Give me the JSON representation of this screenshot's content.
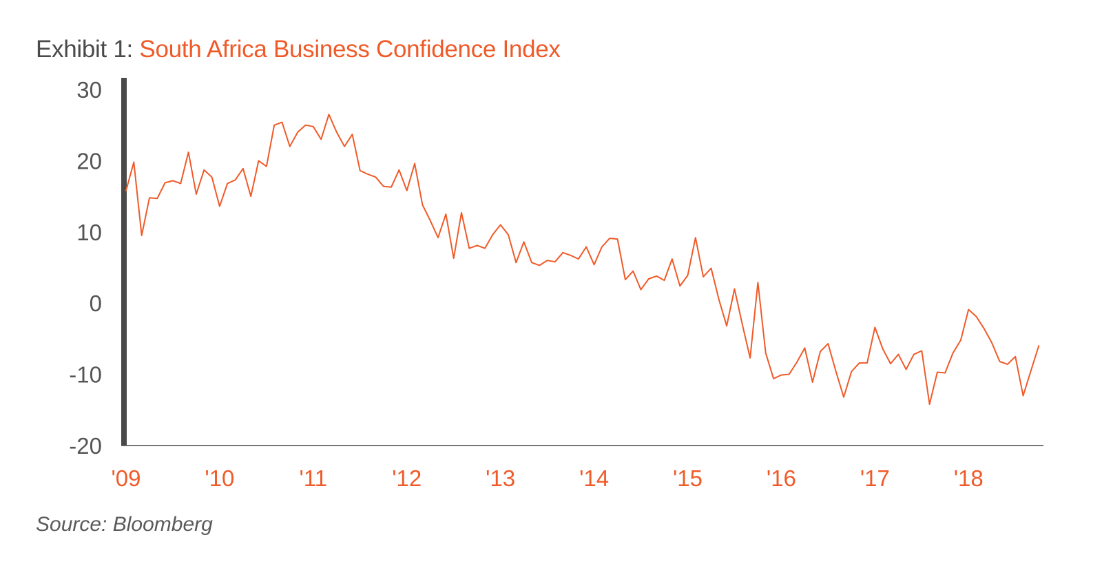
{
  "title": {
    "prefix": "Exhibit 1:",
    "main": "South Africa Business Confidence Index"
  },
  "source": "Source: Bloomberg",
  "colors": {
    "line": "#f05a28",
    "axis": "#4a4a4a",
    "tick_text": "#555555",
    "x_tick_text": "#f05a28"
  },
  "chart_data": {
    "type": "line",
    "title": "South Africa Business Confidence Index",
    "xlabel": "",
    "ylabel": "",
    "ylim": [
      -20,
      30
    ],
    "xlim": [
      2009,
      2018.8
    ],
    "grid": false,
    "legend": "none",
    "yticks": [
      30,
      20,
      10,
      0,
      -10,
      -20
    ],
    "xticks": [
      {
        "x": 2009,
        "label": "'09"
      },
      {
        "x": 2010,
        "label": "'10"
      },
      {
        "x": 2011,
        "label": "'11"
      },
      {
        "x": 2012,
        "label": "'12"
      },
      {
        "x": 2013,
        "label": "'13"
      },
      {
        "x": 2014,
        "label": "'14"
      },
      {
        "x": 2015,
        "label": "'15"
      },
      {
        "x": 2016,
        "label": "'16"
      },
      {
        "x": 2017,
        "label": "'17"
      },
      {
        "x": 2018,
        "label": "'18"
      }
    ],
    "series": [
      {
        "x_start": 2009.0,
        "x_step": 0.08333,
        "values": [
          15.8,
          19.8,
          9.5,
          14.8,
          14.7,
          16.9,
          17.2,
          16.8,
          21.2,
          15.3,
          18.7,
          17.7,
          13.6,
          16.8,
          17.3,
          18.9,
          15.0,
          20.0,
          19.2,
          25.0,
          25.4,
          22.0,
          24.0,
          25.0,
          24.8,
          23.0,
          26.5,
          24.0,
          22.0,
          23.7,
          18.6,
          18.1,
          17.7,
          16.4,
          16.3,
          18.7,
          15.8,
          19.6,
          13.8,
          11.6,
          9.2,
          12.5,
          6.3,
          12.7,
          7.7,
          8.1,
          7.7,
          9.6,
          11.0,
          9.6,
          5.7,
          8.6,
          5.7,
          5.3,
          6.0,
          5.8,
          7.1,
          6.7,
          6.2,
          7.9,
          5.4,
          7.9,
          9.1,
          9.0,
          3.3,
          4.5,
          1.9,
          3.4,
          3.8,
          3.2,
          6.2,
          2.4,
          3.9,
          9.2,
          3.7,
          4.9,
          0.5,
          -3.2,
          2.0,
          -3.0,
          -7.7,
          2.9,
          -7.0,
          -10.6,
          -10.1,
          -10.0,
          -8.3,
          -6.3,
          -11.1,
          -6.8,
          -5.7,
          -9.6,
          -13.2,
          -9.6,
          -8.4,
          -8.4,
          -3.4,
          -6.4,
          -8.5,
          -7.2,
          -9.3,
          -7.2,
          -6.7,
          -14.2,
          -9.7,
          -9.8,
          -7.0,
          -5.2,
          -0.9,
          -1.9,
          -3.6,
          -5.6,
          -8.2,
          -8.6,
          -7.5,
          -13.0,
          -9.5,
          -6.0
        ]
      }
    ]
  }
}
